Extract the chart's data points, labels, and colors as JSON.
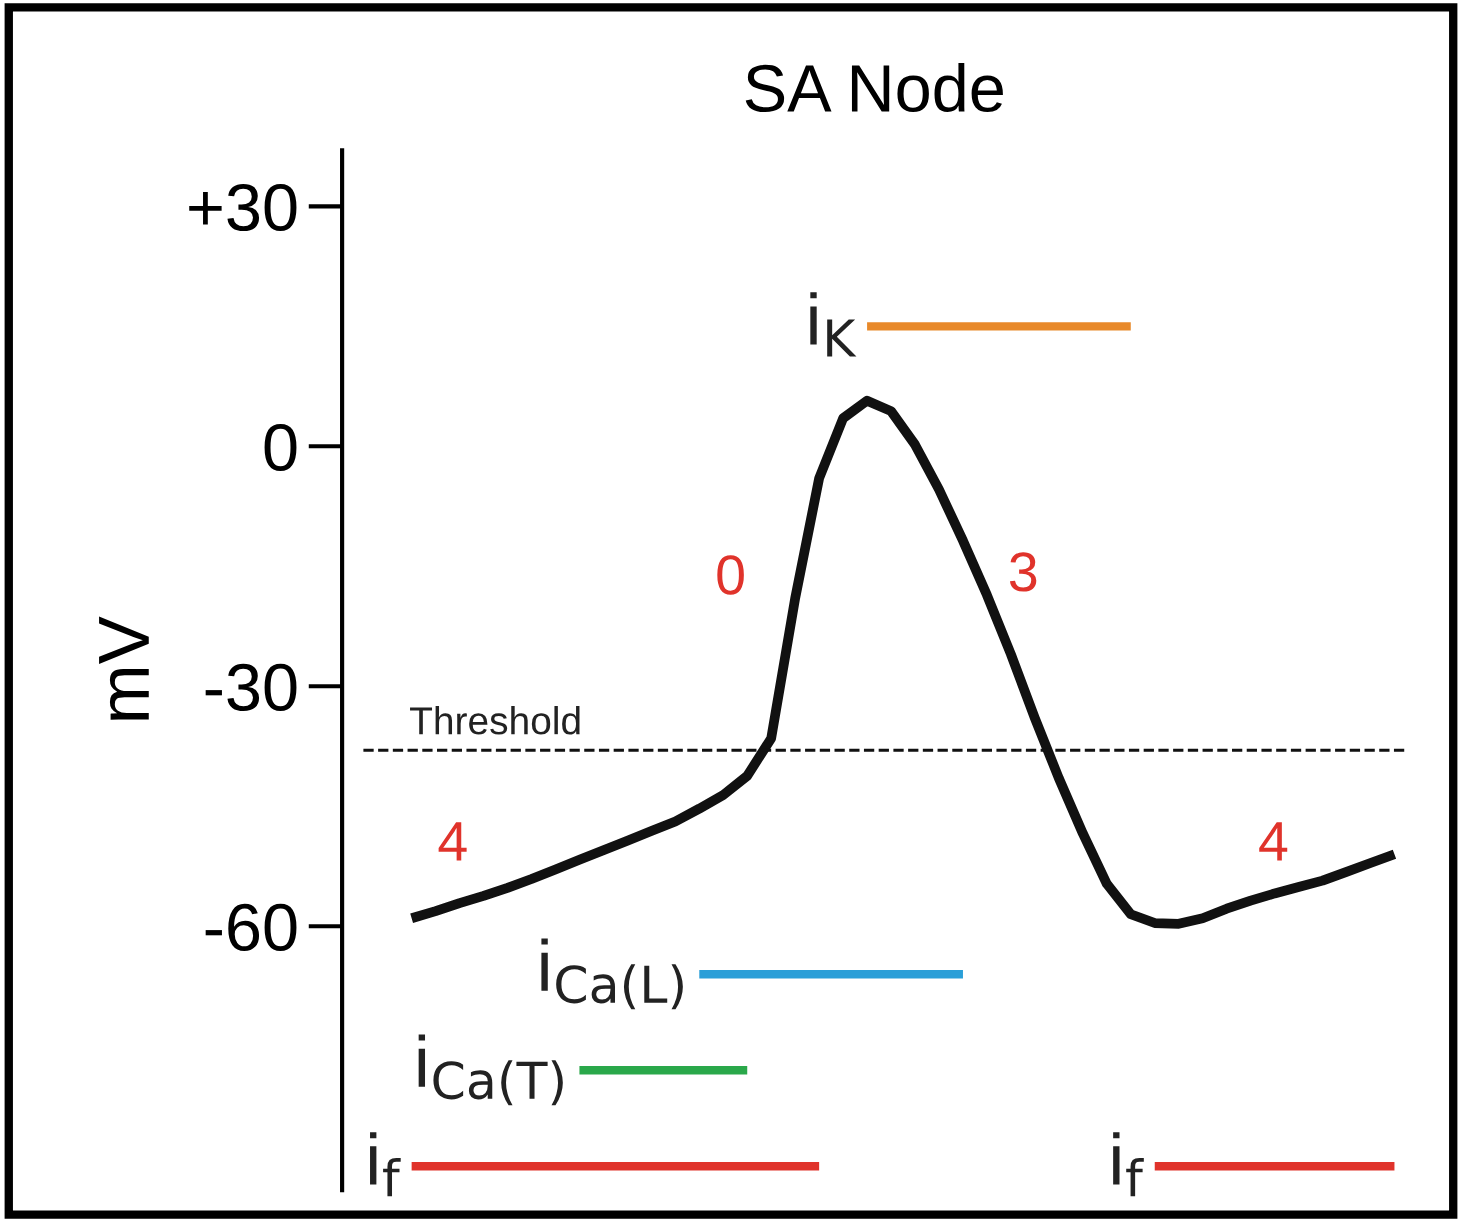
{
  "chart_data": {
    "type": "line",
    "title": "SA Node",
    "ylabel": "mV",
    "ylim": [
      -93,
      37
    ],
    "yticks": [
      {
        "value": 30,
        "label": "+30"
      },
      {
        "value": 0,
        "label": "0"
      },
      {
        "value": -30,
        "label": "-30"
      },
      {
        "value": -60,
        "label": "-60"
      }
    ],
    "tick_labels": "y",
    "grid": false,
    "marker": "none",
    "line_style": "solid",
    "categories": [
      null,
      null,
      null,
      null,
      null,
      null,
      null,
      null,
      null,
      null,
      null,
      null,
      null,
      null,
      null,
      null,
      null,
      null,
      null,
      null,
      null,
      null,
      null,
      null,
      null,
      null,
      null,
      null,
      null,
      null,
      null,
      null,
      null,
      null,
      null,
      null,
      null,
      null,
      null,
      null,
      null,
      null
    ],
    "series": [
      {
        "color": "#111111",
        "values": [
          -59,
          -58.1,
          -57.1,
          -56.2,
          -55.2,
          -54.1,
          -52.9,
          -51.7,
          -50.5,
          -49.3,
          -48.1,
          -46.9,
          -45.3,
          -43.6,
          -41.2,
          -36.5,
          -19,
          -4,
          3.5,
          5.7,
          4.4,
          0.2,
          -5.4,
          -11.8,
          -18.6,
          -26,
          -34,
          -41.5,
          -48.4,
          -54.7,
          -58.5,
          -59.6,
          -59.7,
          -59,
          -57.8,
          -56.8,
          -55.9,
          -55.1,
          -54.3,
          -53.2,
          -52.1,
          -51
        ]
      },
      {
        "name": "i$_{K}$",
        "color": "#e8892a",
        "values": [
          null,
          null,
          null,
          null,
          null,
          null,
          null,
          null,
          null,
          null,
          null,
          null,
          null,
          null,
          null,
          null,
          null,
          null,
          null,
          15,
          15,
          15,
          15,
          15,
          15,
          15,
          15,
          15,
          15,
          15,
          15,
          null,
          null,
          null,
          null,
          null,
          null,
          null,
          null,
          null,
          null,
          null
        ]
      },
      {
        "name": "i$_{Ca(L)}$",
        "color": "#2a9fd8",
        "values": [
          null,
          null,
          null,
          null,
          null,
          null,
          null,
          null,
          null,
          null,
          null,
          null,
          -66,
          -66,
          -66,
          -66,
          -66,
          -66,
          -66,
          -66,
          -66,
          -66,
          -66,
          -66,
          null,
          null,
          null,
          null,
          null,
          null,
          null,
          null,
          null,
          null,
          null,
          null,
          null,
          null,
          null,
          null,
          null,
          null
        ]
      },
      {
        "name": "i$_{Ca(T)}$",
        "color": "#2aa84a",
        "values": [
          null,
          null,
          null,
          null,
          null,
          null,
          null,
          -78,
          -78,
          -78,
          -78,
          -78,
          -78,
          -78,
          -78,
          null,
          null,
          null,
          null,
          null,
          null,
          null,
          null,
          null,
          null,
          null,
          null,
          null,
          null,
          null,
          null,
          null,
          null,
          null,
          null,
          null,
          null,
          null,
          null,
          null,
          null,
          null
        ]
      },
      {
        "name": "i$_{f}$",
        "color": "#e0332b",
        "values": [
          -90,
          -90,
          -90,
          -90,
          -90,
          -90,
          -90,
          -90,
          -90,
          -90,
          -90,
          -90,
          -90,
          -90,
          -90,
          -90,
          -90,
          -90,
          null,
          null,
          null,
          null,
          null,
          null,
          null,
          null,
          null,
          null,
          null,
          null,
          null,
          -90,
          -90,
          -90,
          -90,
          -90,
          -90,
          -90,
          -90,
          -90,
          -90,
          -90
        ]
      }
    ],
    "ref_lines": [
      {
        "axis": "y",
        "value": -38,
        "label": "Threshold",
        "color": "#111111",
        "line_style": "dashed"
      }
    ],
    "annotations": [
      "0",
      "3",
      "4",
      "4"
    ]
  }
}
